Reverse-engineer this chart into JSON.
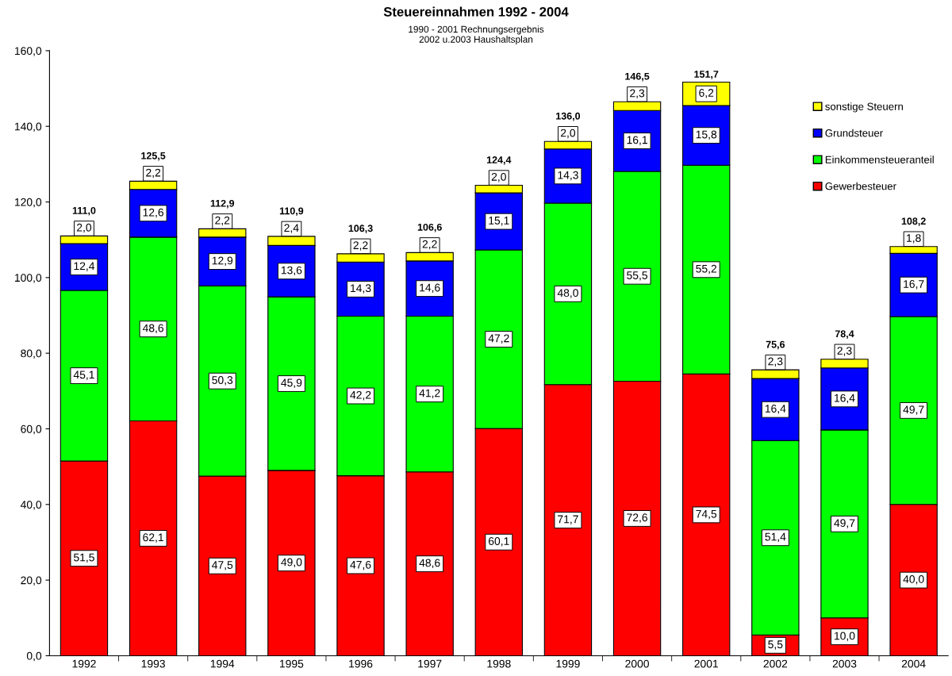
{
  "chart_data": {
    "type": "bar",
    "title": "Steuereinnahmen 1992 - 2004",
    "subtitle": "1990 - 2001 Rechnungsergebnis\n2002 u.2003 Haushaltsplan",
    "stacked": true,
    "legend": "top right",
    "grid": false,
    "categories": [
      "1992",
      "1993",
      "1994",
      "1995",
      "1996",
      "1997",
      "1998",
      "1999",
      "2000",
      "2001",
      "2002",
      "2003",
      "2004"
    ],
    "series": [
      {
        "name": "Gewerbesteuer",
        "color": "#ff0000",
        "values": [
          51.5,
          62.1,
          47.5,
          49.0,
          47.6,
          48.6,
          60.1,
          71.7,
          72.6,
          74.5,
          5.5,
          10.0,
          40.0
        ],
        "value_labels": [
          "51,5",
          "62,1",
          "47,5",
          "49,0",
          "47,6",
          "48,6",
          "60,1",
          "71,7",
          "72,6",
          "74,5",
          "5,5",
          "10,0",
          "40,0"
        ]
      },
      {
        "name": "Einkommensteueranteil",
        "color": "#00ff00",
        "values": [
          45.1,
          48.6,
          50.3,
          45.9,
          42.2,
          41.2,
          47.2,
          48.0,
          55.5,
          55.2,
          51.4,
          49.7,
          49.7
        ],
        "value_labels": [
          "45,1",
          "48,6",
          "50,3",
          "45,9",
          "42,2",
          "41,2",
          "47,2",
          "48,0",
          "55,5",
          "55,2",
          "51,4",
          "49,7",
          "49,7"
        ]
      },
      {
        "name": "Grundsteuer",
        "color": "#0000ff",
        "values": [
          12.4,
          12.6,
          12.9,
          13.6,
          14.3,
          14.6,
          15.1,
          14.3,
          16.1,
          15.8,
          16.4,
          16.4,
          16.7
        ],
        "value_labels": [
          "12,4",
          "12,6",
          "12,9",
          "13,6",
          "14,3",
          "14,6",
          "15,1",
          "14,3",
          "16,1",
          "15,8",
          "16,4",
          "16,4",
          "16,7"
        ]
      },
      {
        "name": "sonstige Steuern",
        "color": "#ffff00",
        "values": [
          2.0,
          2.2,
          2.2,
          2.4,
          2.2,
          2.2,
          2.0,
          2.0,
          2.3,
          6.2,
          2.3,
          2.3,
          1.8
        ],
        "value_labels": [
          "2,0",
          "2,2",
          "2,2",
          "2,4",
          "2,2",
          "2,2",
          "2,0",
          "2,0",
          "2,3",
          "6,2",
          "2,3",
          "2,3",
          "1,8"
        ]
      }
    ],
    "totals": [
      "111,0",
      "125,5",
      "112,9",
      "110,9",
      "106,3",
      "106,6",
      "124,4",
      "136,0",
      "146,5",
      "151,7",
      "75,6",
      "78,4",
      "108,2"
    ],
    "ylim": [
      0,
      160
    ],
    "yticks": [
      {
        "value": 0,
        "label": "0,0"
      },
      {
        "value": 20,
        "label": "20,0"
      },
      {
        "value": 40,
        "label": "40,0"
      },
      {
        "value": 60,
        "label": "60,0"
      },
      {
        "value": 80,
        "label": "80,0"
      },
      {
        "value": 100,
        "label": "100,0"
      },
      {
        "value": 120,
        "label": "120,0"
      },
      {
        "value": 140,
        "label": "140,0"
      },
      {
        "value": 160,
        "label": "160,0"
      }
    ]
  }
}
